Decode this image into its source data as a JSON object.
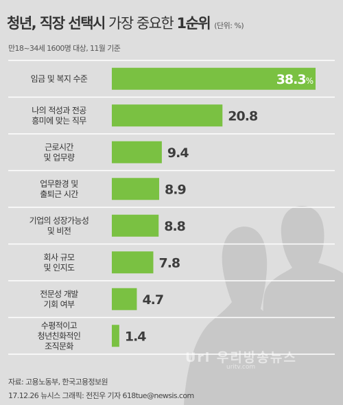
{
  "header": {
    "title_part1": "청년, 직장 선택시",
    "title_part2": " 가장 중요한 ",
    "title_part3": "1순위",
    "unit": "(단위: %)",
    "subtitle": "만18~34세 1600명 대상, 11월 기준"
  },
  "footer": {
    "source": "자료: 고용노동부, 한국고용정보원",
    "credit": "17.12.26 뉴시스 그래픽: 전진우 기자 618tue@newsis.com"
  },
  "watermark": {
    "text": "Uri 우리방송뉴스",
    "url": "uritv.com"
  },
  "colors": {
    "bar": "#7ac142",
    "background": "#dedede",
    "separator": "#ffffff",
    "figure": "#c8c8c8"
  },
  "chart_data": {
    "type": "bar",
    "orientation": "horizontal",
    "categories": [
      [
        "임금 및 복지 수준"
      ],
      [
        "나의 적성과 전공",
        "흥미에 맞는 직무"
      ],
      [
        "근로시간",
        "및 업무량"
      ],
      [
        "업무환경 및",
        "출퇴근 시간"
      ],
      [
        "기업의 성장가능성",
        "및 비전"
      ],
      [
        "회사 규모",
        "및 인지도"
      ],
      [
        "전문성 개발",
        "기회 여부"
      ],
      [
        "수평적이고",
        "청년친화적인",
        "조직문화"
      ]
    ],
    "values": [
      38.3,
      20.8,
      9.4,
      8.9,
      8.8,
      7.8,
      4.7,
      1.4
    ],
    "value_labels": [
      "38.3",
      "20.8",
      "9.4",
      "8.9",
      "8.8",
      "7.8",
      "4.7",
      "1.4"
    ],
    "first_value_suffix": "%",
    "xlim": [
      0,
      38.3
    ]
  }
}
